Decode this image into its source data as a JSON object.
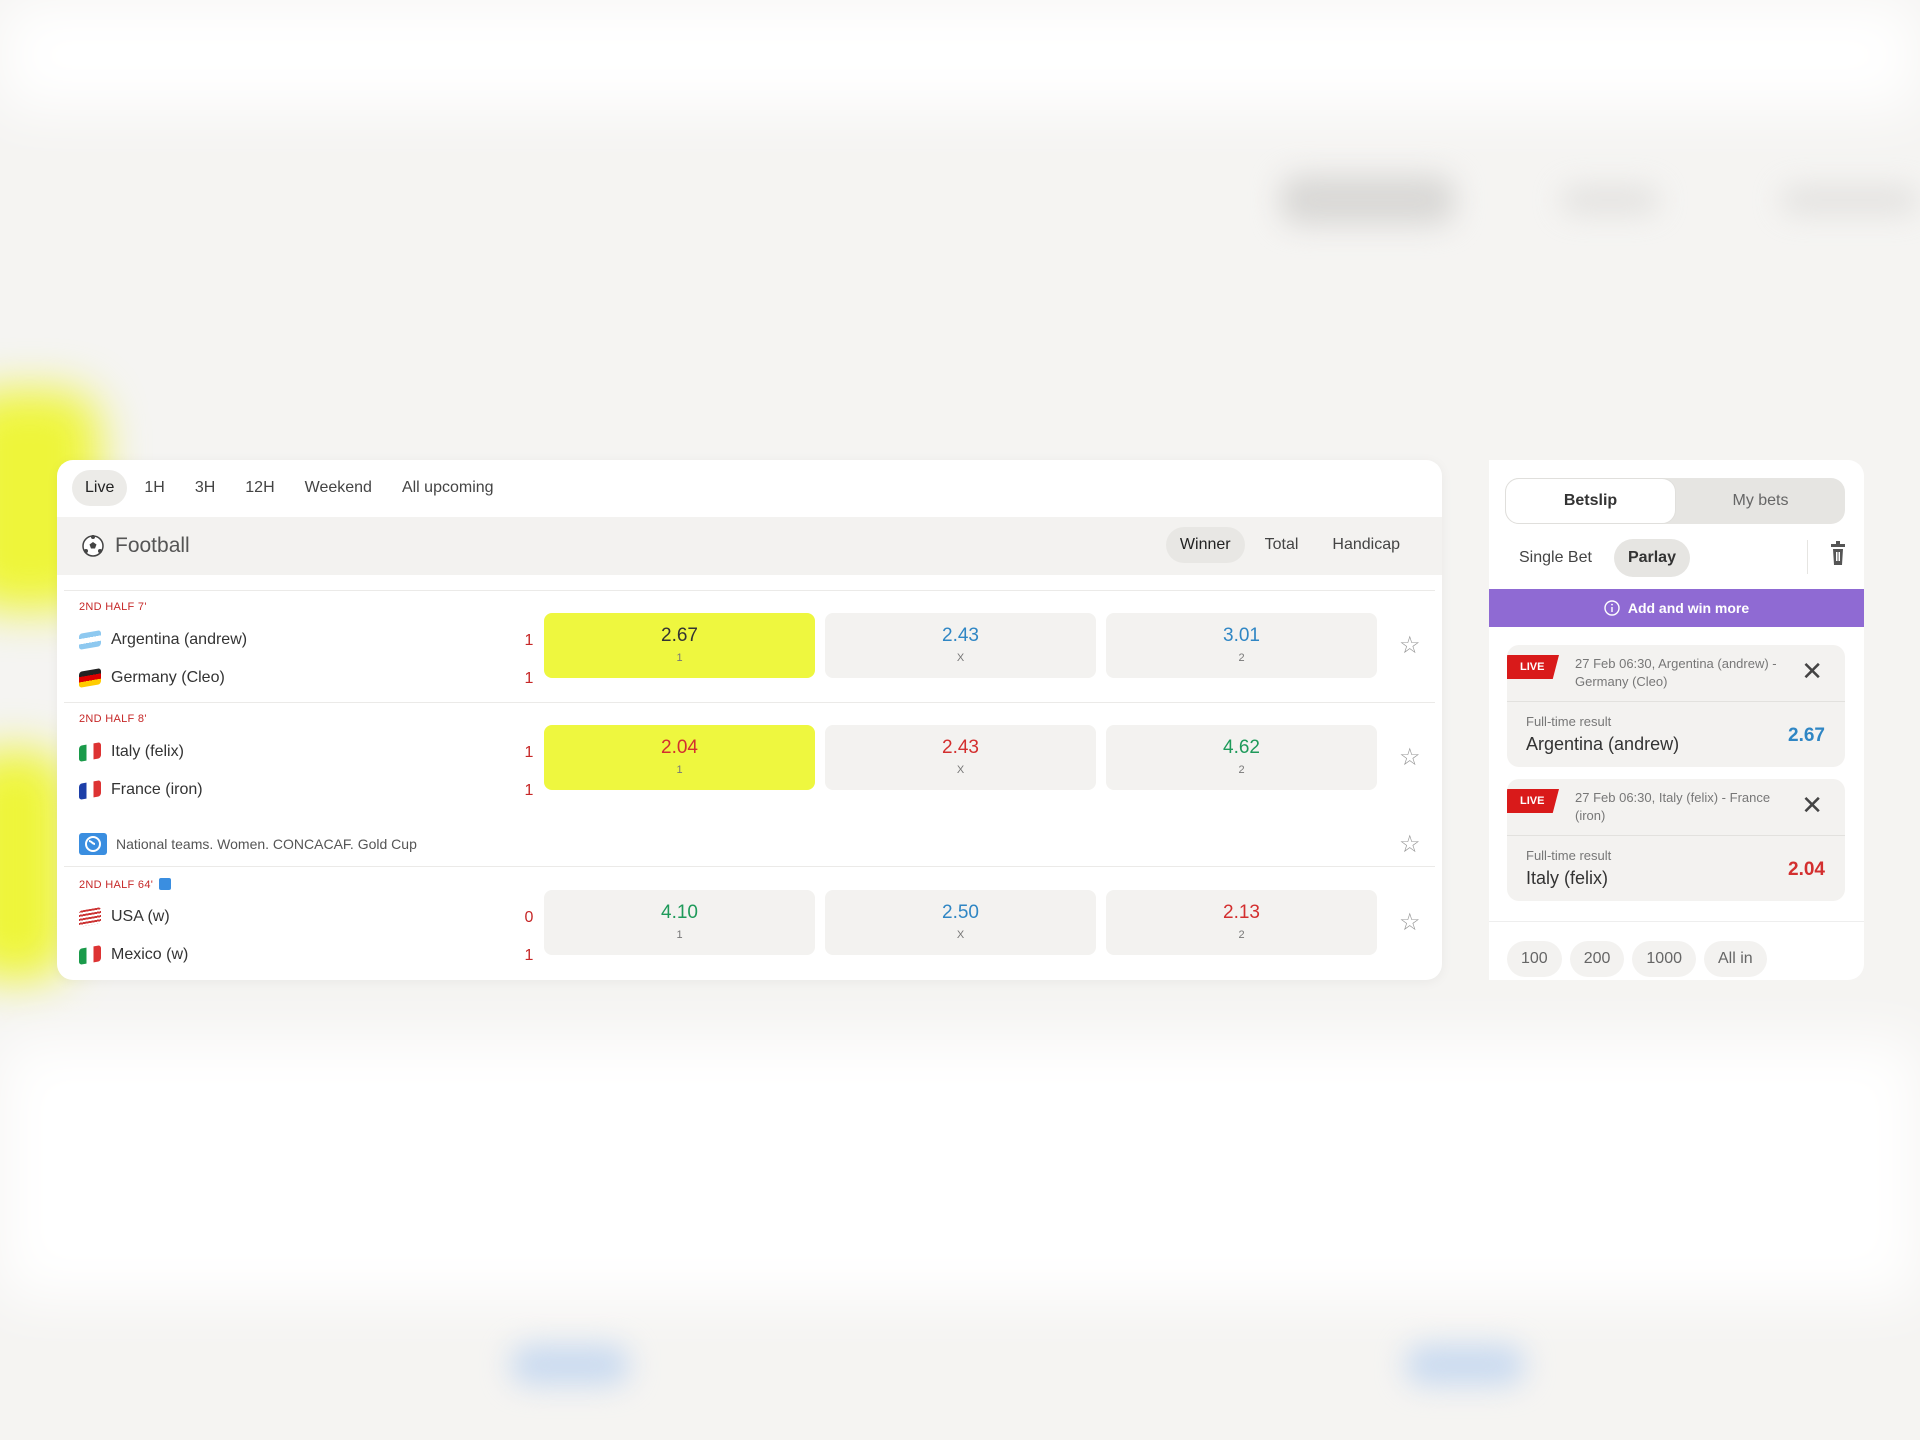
{
  "time_filters": [
    {
      "label": "Live",
      "active": true
    },
    {
      "label": "1H"
    },
    {
      "label": "3H"
    },
    {
      "label": "12H"
    },
    {
      "label": "Weekend"
    },
    {
      "label": "All upcoming"
    }
  ],
  "sport": {
    "title": "Football",
    "icon": "soccer-ball-icon"
  },
  "markets": [
    {
      "label": "Winner",
      "active": true
    },
    {
      "label": "Total"
    },
    {
      "label": "Handicap"
    }
  ],
  "matches": [
    {
      "period": "2ND HALF 7'",
      "home": "Argentina (andrew)",
      "away": "Germany (Cleo)",
      "home_score": "1",
      "away_score": "1",
      "odds": [
        {
          "value": "2.67",
          "label": "1",
          "color": "#333333",
          "selected": true
        },
        {
          "value": "2.43",
          "label": "X",
          "color": "#2f86c4"
        },
        {
          "value": "3.01",
          "label": "2",
          "color": "#2f86c4"
        }
      ]
    },
    {
      "period": "2ND HALF 8'",
      "home": "Italy (felix)",
      "away": "France (iron)",
      "home_score": "1",
      "away_score": "1",
      "odds": [
        {
          "value": "2.04",
          "label": "1",
          "color": "#d32f2f",
          "selected": true
        },
        {
          "value": "2.43",
          "label": "X",
          "color": "#d32f2f"
        },
        {
          "value": "4.62",
          "label": "2",
          "color": "#1e9a5a"
        }
      ]
    },
    {
      "period": "2ND HALF 64'",
      "home": "USA (w)",
      "away": "Mexico (w)",
      "home_score": "0",
      "away_score": "1",
      "odds": [
        {
          "value": "4.10",
          "label": "1",
          "color": "#1e9a5a"
        },
        {
          "value": "2.50",
          "label": "X",
          "color": "#2f86c4"
        },
        {
          "value": "2.13",
          "label": "2",
          "color": "#d32f2f"
        }
      ]
    }
  ],
  "league": {
    "name": "National teams. Women. CONCACAF. Gold Cup",
    "icon": "globe-icon"
  },
  "betslip": {
    "tabs": [
      {
        "label": "Betslip",
        "active": true
      },
      {
        "label": "My bets"
      }
    ],
    "modes": [
      {
        "label": "Single Bet"
      },
      {
        "label": "Parlay",
        "active": true
      }
    ],
    "promo": "Add and win more",
    "live_label": "LIVE",
    "selections": [
      {
        "event": "27 Feb 06:30, Argentina (andrew) - Germany (Cleo)",
        "market": "Full-time result",
        "pick": "Argentina (andrew)",
        "odds": "2.67",
        "color": "#2f86c4"
      },
      {
        "event": "27 Feb 06:30, Italy (felix) - France (iron)",
        "market": "Full-time result",
        "pick": "Italy (felix)",
        "odds": "2.04",
        "color": "#d32f2f"
      }
    ],
    "stakes": [
      "100",
      "200",
      "1000",
      "All in"
    ]
  },
  "colors": {
    "selected_odd": "#eef73f",
    "promo": "#8f6ad3",
    "live": "#d91a1a"
  }
}
